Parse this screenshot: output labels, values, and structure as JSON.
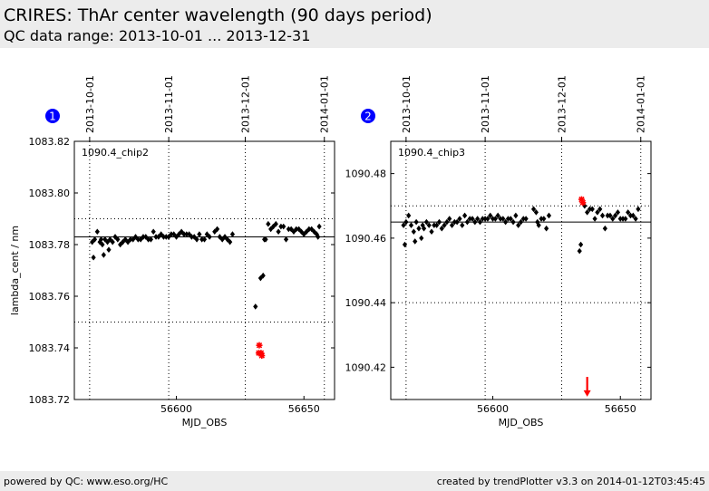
{
  "header": {
    "title": "CRIRES: ThAr center wavelength (90 days period)",
    "subtitle": "QC data range: 2013-10-01 ... 2013-12-31"
  },
  "footer": {
    "left": "powered by QC: www.eso.org/HC",
    "right": "created by trendPlotter v3.3 on 2014-01-12T03:45:45"
  },
  "colors": {
    "data": "#000000",
    "outlier": "#ff0000",
    "badge": "#0000ff"
  },
  "chart_data": [
    {
      "type": "scatter",
      "badge": "1",
      "annotation": "1090.4_chip2",
      "xlabel": "MJD_OBS",
      "ylabel": "lambda_cent / nm",
      "xlim": [
        56560,
        56662
      ],
      "ylim": [
        1083.72,
        1083.82
      ],
      "xticks": [
        56600,
        56650
      ],
      "yticks": [
        1083.72,
        1083.74,
        1083.76,
        1083.78,
        1083.8,
        1083.82
      ],
      "ytick_labels": [
        "1083.72",
        "1083.74",
        "1083.76",
        "1083.78",
        "1083.80",
        "1083.82"
      ],
      "date_ticks": [
        {
          "label": "2013-10-01",
          "mjd": 56566
        },
        {
          "label": "2013-11-01",
          "mjd": 56597
        },
        {
          "label": "2013-12-01",
          "mjd": 56627
        },
        {
          "label": "2014-01-01",
          "mjd": 56658
        }
      ],
      "reference_line": 1083.783,
      "limit_lines": [
        1083.79,
        1083.75
      ],
      "points": [
        [
          56567,
          1083.781
        ],
        [
          56567.5,
          1083.775
        ],
        [
          56568,
          1083.782
        ],
        [
          56569,
          1083.785
        ],
        [
          56570,
          1083.781
        ],
        [
          56570.5,
          1083.782
        ],
        [
          56571,
          1083.78
        ],
        [
          56571.5,
          1083.776
        ],
        [
          56572,
          1083.782
        ],
        [
          56573,
          1083.781
        ],
        [
          56573.5,
          1083.778
        ],
        [
          56574,
          1083.782
        ],
        [
          56575,
          1083.781
        ],
        [
          56576,
          1083.783
        ],
        [
          56577,
          1083.782
        ],
        [
          56578,
          1083.78
        ],
        [
          56579,
          1083.781
        ],
        [
          56580,
          1083.782
        ],
        [
          56581,
          1083.781
        ],
        [
          56582,
          1083.782
        ],
        [
          56583,
          1083.782
        ],
        [
          56584,
          1083.783
        ],
        [
          56585,
          1083.782
        ],
        [
          56586,
          1083.782
        ],
        [
          56587,
          1083.783
        ],
        [
          56588,
          1083.783
        ],
        [
          56589,
          1083.782
        ],
        [
          56590,
          1083.782
        ],
        [
          56591,
          1083.785
        ],
        [
          56592,
          1083.783
        ],
        [
          56593,
          1083.783
        ],
        [
          56594,
          1083.784
        ],
        [
          56595,
          1083.783
        ],
        [
          56596,
          1083.783
        ],
        [
          56597,
          1083.783
        ],
        [
          56598,
          1083.784
        ],
        [
          56599,
          1083.784
        ],
        [
          56600,
          1083.783
        ],
        [
          56601,
          1083.784
        ],
        [
          56602,
          1083.785
        ],
        [
          56603,
          1083.784
        ],
        [
          56604,
          1083.784
        ],
        [
          56605,
          1083.784
        ],
        [
          56606,
          1083.783
        ],
        [
          56607,
          1083.783
        ],
        [
          56608,
          1083.782
        ],
        [
          56609,
          1083.784
        ],
        [
          56610,
          1083.782
        ],
        [
          56611,
          1083.782
        ],
        [
          56612,
          1083.784
        ],
        [
          56613,
          1083.783
        ],
        [
          56615,
          1083.785
        ],
        [
          56616,
          1083.786
        ],
        [
          56617,
          1083.783
        ],
        [
          56618,
          1083.782
        ],
        [
          56619,
          1083.783
        ],
        [
          56620,
          1083.782
        ],
        [
          56621,
          1083.781
        ],
        [
          56622,
          1083.784
        ],
        [
          56631,
          1083.756
        ],
        [
          56633,
          1083.767
        ],
        [
          56634,
          1083.768
        ],
        [
          56634.5,
          1083.782
        ],
        [
          56635,
          1083.782
        ],
        [
          56636,
          1083.788
        ],
        [
          56637,
          1083.786
        ],
        [
          56638,
          1083.787
        ],
        [
          56639,
          1083.788
        ],
        [
          56640,
          1083.785
        ],
        [
          56641,
          1083.787
        ],
        [
          56642,
          1083.787
        ],
        [
          56643,
          1083.782
        ],
        [
          56644,
          1083.786
        ],
        [
          56645,
          1083.786
        ],
        [
          56646,
          1083.785
        ],
        [
          56647,
          1083.786
        ],
        [
          56648,
          1083.786
        ],
        [
          56649,
          1083.785
        ],
        [
          56650,
          1083.784
        ],
        [
          56651,
          1083.785
        ],
        [
          56652,
          1083.786
        ],
        [
          56653,
          1083.786
        ],
        [
          56654,
          1083.785
        ],
        [
          56655,
          1083.784
        ],
        [
          56655.5,
          1083.783
        ],
        [
          56656,
          1083.787
        ]
      ],
      "outliers": [
        [
          56632.5,
          1083.741
        ],
        [
          56632.3,
          1083.738
        ],
        [
          56633.2,
          1083.738
        ],
        [
          56633.5,
          1083.737
        ]
      ],
      "offscale_arrows": []
    },
    {
      "type": "scatter",
      "badge": "2",
      "annotation": "1090.4_chip3",
      "xlabel": "MJD_OBS",
      "ylabel": "",
      "xlim": [
        56560,
        56662
      ],
      "ylim": [
        1090.41,
        1090.49
      ],
      "xticks": [
        56600,
        56650
      ],
      "yticks": [
        1090.42,
        1090.44,
        1090.46,
        1090.48
      ],
      "ytick_labels": [
        "1090.42",
        "1090.44",
        "1090.46",
        "1090.48"
      ],
      "date_ticks": [
        {
          "label": "2013-10-01",
          "mjd": 56566
        },
        {
          "label": "2013-11-01",
          "mjd": 56597
        },
        {
          "label": "2013-12-01",
          "mjd": 56627
        },
        {
          "label": "2014-01-01",
          "mjd": 56658
        }
      ],
      "reference_line": 1090.465,
      "limit_lines": [
        1090.47,
        1090.44
      ],
      "points": [
        [
          56565,
          1090.464
        ],
        [
          56565.5,
          1090.458
        ],
        [
          56566,
          1090.465
        ],
        [
          56567,
          1090.467
        ],
        [
          56568,
          1090.464
        ],
        [
          56569,
          1090.462
        ],
        [
          56569.5,
          1090.459
        ],
        [
          56570,
          1090.465
        ],
        [
          56571,
          1090.463
        ],
        [
          56572,
          1090.46
        ],
        [
          56572.5,
          1090.464
        ],
        [
          56573,
          1090.463
        ],
        [
          56574,
          1090.465
        ],
        [
          56575,
          1090.464
        ],
        [
          56576,
          1090.462
        ],
        [
          56577,
          1090.464
        ],
        [
          56578,
          1090.464
        ],
        [
          56579,
          1090.465
        ],
        [
          56580,
          1090.463
        ],
        [
          56581,
          1090.464
        ],
        [
          56582,
          1090.465
        ],
        [
          56583,
          1090.466
        ],
        [
          56584,
          1090.464
        ],
        [
          56585,
          1090.465
        ],
        [
          56586,
          1090.465
        ],
        [
          56587,
          1090.466
        ],
        [
          56588,
          1090.464
        ],
        [
          56589,
          1090.467
        ],
        [
          56590,
          1090.465
        ],
        [
          56591,
          1090.466
        ],
        [
          56592,
          1090.466
        ],
        [
          56593,
          1090.465
        ],
        [
          56594,
          1090.466
        ],
        [
          56595,
          1090.465
        ],
        [
          56596,
          1090.466
        ],
        [
          56597,
          1090.466
        ],
        [
          56598,
          1090.466
        ],
        [
          56599,
          1090.467
        ],
        [
          56600,
          1090.466
        ],
        [
          56601,
          1090.466
        ],
        [
          56602,
          1090.467
        ],
        [
          56603,
          1090.466
        ],
        [
          56604,
          1090.466
        ],
        [
          56605,
          1090.465
        ],
        [
          56606,
          1090.466
        ],
        [
          56607,
          1090.466
        ],
        [
          56608,
          1090.465
        ],
        [
          56609,
          1090.467
        ],
        [
          56610,
          1090.464
        ],
        [
          56611,
          1090.465
        ],
        [
          56612,
          1090.466
        ],
        [
          56613,
          1090.466
        ],
        [
          56616,
          1090.469
        ],
        [
          56617,
          1090.468
        ],
        [
          56617.5,
          1090.465
        ],
        [
          56618,
          1090.464
        ],
        [
          56619,
          1090.466
        ],
        [
          56620,
          1090.466
        ],
        [
          56621,
          1090.463
        ],
        [
          56622,
          1090.467
        ],
        [
          56634,
          1090.456
        ],
        [
          56634.5,
          1090.458
        ],
        [
          56636,
          1090.47
        ],
        [
          56637,
          1090.468
        ],
        [
          56638,
          1090.469
        ],
        [
          56639,
          1090.469
        ],
        [
          56640,
          1090.466
        ],
        [
          56641,
          1090.468
        ],
        [
          56642,
          1090.469
        ],
        [
          56643,
          1090.467
        ],
        [
          56644,
          1090.463
        ],
        [
          56645,
          1090.467
        ],
        [
          56646,
          1090.467
        ],
        [
          56647,
          1090.466
        ],
        [
          56648,
          1090.467
        ],
        [
          56649,
          1090.468
        ],
        [
          56650,
          1090.466
        ],
        [
          56651,
          1090.466
        ],
        [
          56652,
          1090.466
        ],
        [
          56653,
          1090.468
        ],
        [
          56654,
          1090.467
        ],
        [
          56655,
          1090.467
        ],
        [
          56656,
          1090.466
        ],
        [
          56657,
          1090.469
        ]
      ],
      "outliers": [
        [
          56634.8,
          1090.472
        ],
        [
          56635.3,
          1090.471
        ]
      ],
      "offscale_arrows": [
        {
          "x": 56637,
          "y_from": 1090.417,
          "y_to": 1090.412
        }
      ]
    }
  ]
}
